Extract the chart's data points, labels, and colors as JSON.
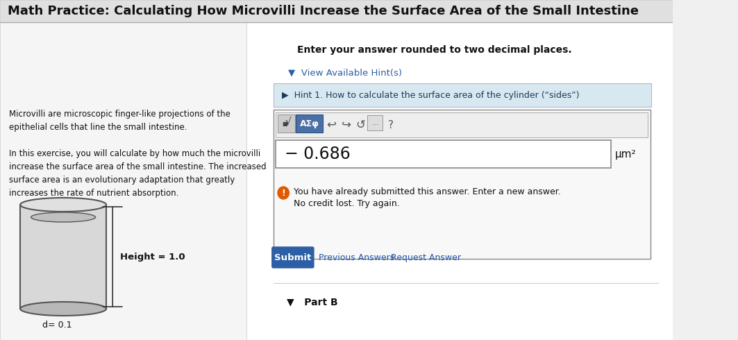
{
  "title": "Math Practice: Calculating How Microvilli Increase the Surface Area of the Small Intestine",
  "title_fontsize": 13,
  "bg_color": "#f0f0f0",
  "left_text_1": "Microvilli are microscopic finger-like projections of the\nepithelial cells that line the small intestine.",
  "left_text_2": "In this exercise, you will calculate by how much the microvilli\nincrease the surface area of the small intestine. The increased\nsurface area is an evolutionary adaptation that greatly\nincreases the rate of nutrient absorption.",
  "label_d": "d= 0.1",
  "label_h": "Height = 1.0",
  "instruction": "Enter your answer rounded to two decimal places.",
  "hint_label": "▼  View Available Hint(s)",
  "hint_1": "▶  Hint 1. How to calculate the surface area of the cylinder (“sides”)",
  "hint_bg": "#d8e8f0",
  "answer_value": "− 0.686",
  "answer_unit": "μm²",
  "error_msg_1": "You have already submitted this answer. Enter a new answer.",
  "error_msg_2": "No credit lost. Try again.",
  "submit_btn": "Submit",
  "prev_answers": "Previous Answers",
  "request_answer": "Request Answer",
  "part_b": "▼   Part B",
  "submit_color": "#2d5fa6",
  "error_icon_color": "#e05a00",
  "hint_arrow_color": "#2d5fa6"
}
